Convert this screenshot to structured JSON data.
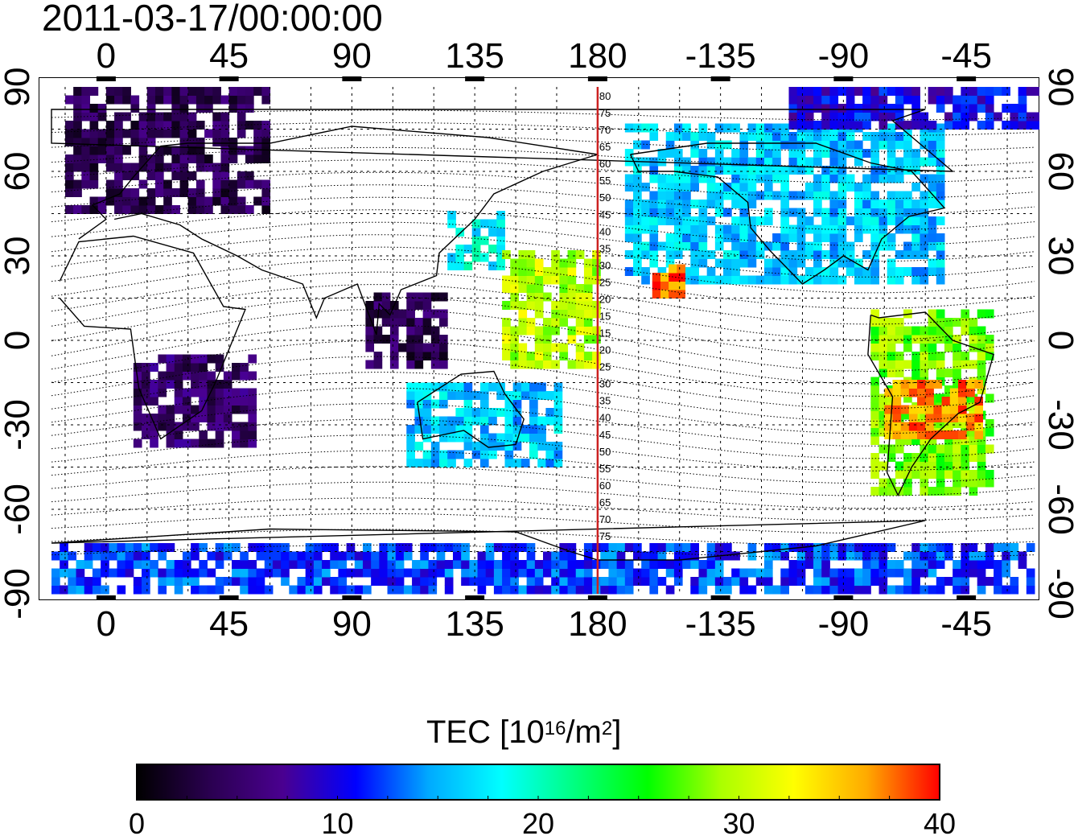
{
  "title": "2011-03-17/00:00:00",
  "map": {
    "top_lon_labels": [
      "0",
      "45",
      "90",
      "135",
      "180",
      "-135",
      "-90",
      "-45"
    ],
    "bottom_lon_labels": [
      "0",
      "45",
      "90",
      "135",
      "180",
      "-135",
      "-90",
      "-45"
    ],
    "lat_labels": [
      "90",
      "60",
      "30",
      "0",
      "-30",
      "-60",
      "-90"
    ],
    "lon_range": [
      -20,
      340
    ],
    "lat_range": [
      -90,
      90
    ],
    "contour_labels": [
      "80",
      "75",
      "70",
      "65",
      "60",
      "55",
      "50",
      "45",
      "40",
      "35",
      "30",
      "25",
      "20",
      "15",
      "15",
      "20",
      "25",
      "30",
      "35",
      "40",
      "45",
      "50",
      "55",
      "60",
      "65",
      "70",
      "75"
    ],
    "meridian_marker_lon": 180,
    "meridian_marker_color": "#cc2222"
  },
  "colorbar": {
    "title_prefix": "TEC  [10",
    "title_sup1": "16",
    "title_mid": "/m",
    "title_sup2": "2",
    "title_suffix": "]",
    "min": 0,
    "max": 40,
    "tick_labels": [
      "0",
      "10",
      "20",
      "30",
      "40"
    ],
    "colors": [
      "#000000",
      "#2a0050",
      "#4a0090",
      "#0000ff",
      "#00aaff",
      "#00ffff",
      "#00ff80",
      "#00ff00",
      "#aaff00",
      "#ffff00",
      "#ffaa00",
      "#ff0000"
    ]
  },
  "tec_regions": [
    {
      "name": "europe-north",
      "lon": [
        -15,
        60
      ],
      "lat": [
        45,
        88
      ],
      "tec": 4
    },
    {
      "name": "africa-south",
      "lon": [
        10,
        55
      ],
      "lat": [
        -38,
        -5
      ],
      "tec": 5
    },
    {
      "name": "asia-se",
      "lon": [
        95,
        125
      ],
      "lat": [
        -10,
        15
      ],
      "tec": 4
    },
    {
      "name": "japan",
      "lon": [
        125,
        145
      ],
      "lat": [
        25,
        45
      ],
      "tec": 18
    },
    {
      "name": "pacific-equator",
      "lon": [
        145,
        180
      ],
      "lat": [
        -10,
        30
      ],
      "tec": 30
    },
    {
      "name": "australia",
      "lon": [
        110,
        165
      ],
      "lat": [
        -45,
        -15
      ],
      "tec": 16
    },
    {
      "name": "north-america",
      "lon": [
        -170,
        -55
      ],
      "lat": [
        20,
        75
      ],
      "tec": 16
    },
    {
      "name": "south-america",
      "lon": [
        -80,
        -35
      ],
      "lat": [
        -55,
        10
      ],
      "tec": 28
    },
    {
      "name": "south-america-band",
      "lon": [
        -75,
        -40
      ],
      "lat": [
        -35,
        -15
      ],
      "tec": 37
    },
    {
      "name": "antarctica",
      "lon": [
        -20,
        340
      ],
      "lat": [
        -90,
        -72
      ],
      "tec": 12
    },
    {
      "name": "arctic-america",
      "lon": [
        -110,
        -20
      ],
      "lat": [
        75,
        90
      ],
      "tec": 10
    },
    {
      "name": "hawaii",
      "lon": [
        -160,
        -150
      ],
      "lat": [
        15,
        25
      ],
      "tec": 38
    }
  ]
}
